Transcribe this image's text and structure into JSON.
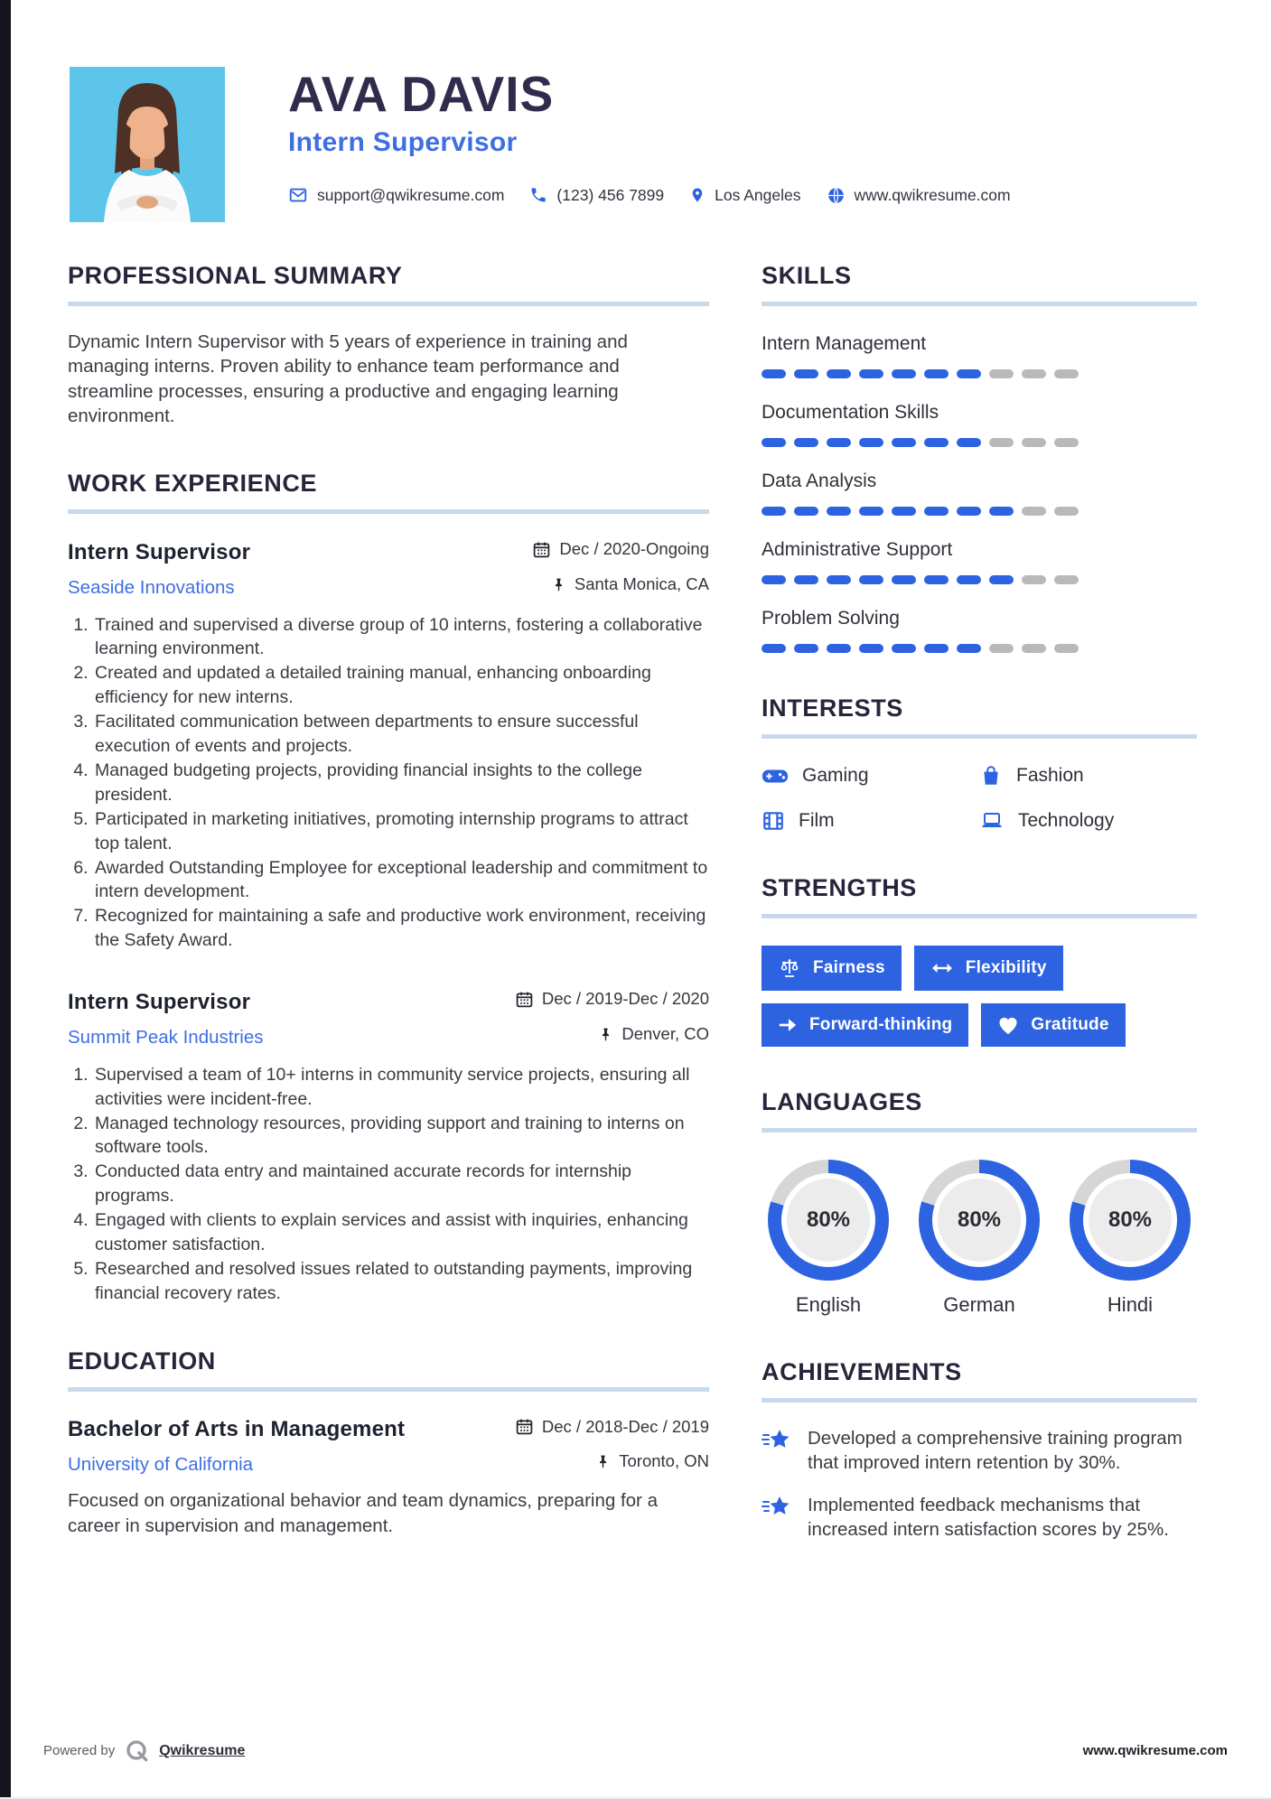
{
  "header": {
    "name": "AVA DAVIS",
    "title": "Intern Supervisor",
    "contacts": [
      {
        "icon": "email-icon",
        "text": "support@qwikresume.com"
      },
      {
        "icon": "phone-icon",
        "text": "(123) 456 7899"
      },
      {
        "icon": "location-icon",
        "text": "Los Angeles"
      },
      {
        "icon": "globe-icon",
        "text": "www.qwikresume.com"
      }
    ]
  },
  "summary": {
    "heading": "PROFESSIONAL SUMMARY",
    "text": "Dynamic Intern Supervisor with 5 years of experience in training and managing interns. Proven ability to enhance team performance and streamline processes, ensuring a productive and engaging learning environment."
  },
  "experience": {
    "heading": "WORK EXPERIENCE",
    "jobs": [
      {
        "title": "Intern Supervisor",
        "company": "Seaside Innovations",
        "dates": "Dec / 2020-Ongoing",
        "location": "Santa Monica, CA",
        "bullets": [
          "Trained and supervised a diverse group of 10 interns, fostering a collaborative learning environment.",
          "Created and updated a detailed training manual, enhancing onboarding efficiency for new interns.",
          "Facilitated communication between departments to ensure successful execution of events and projects.",
          "Managed budgeting projects, providing financial insights to the college president.",
          "Participated in marketing initiatives, promoting internship programs to attract top talent.",
          "Awarded Outstanding Employee for exceptional leadership and commitment to intern development.",
          "Recognized for maintaining a safe and productive work environment, receiving the Safety Award."
        ]
      },
      {
        "title": "Intern Supervisor",
        "company": "Summit Peak Industries",
        "dates": "Dec / 2019-Dec / 2020",
        "location": "Denver, CO",
        "bullets": [
          "Supervised a team of 10+ interns in community service projects, ensuring all activities were incident-free.",
          "Managed technology resources, providing support and training to interns on software tools.",
          "Conducted data entry and maintained accurate records for internship programs.",
          "Engaged with clients to explain services and assist with inquiries, enhancing customer satisfaction.",
          "Researched and resolved issues related to outstanding payments, improving financial recovery rates."
        ]
      }
    ]
  },
  "education": {
    "heading": "EDUCATION",
    "degree": "Bachelor of Arts in Management",
    "school": "University of California",
    "dates": "Dec / 2018-Dec / 2019",
    "location": "Toronto, ON",
    "description": "Focused on organizational behavior and team dynamics, preparing for a career in supervision and management."
  },
  "skills": {
    "heading": "SKILLS",
    "max": 10,
    "items": [
      {
        "label": "Intern Management",
        "level": 7
      },
      {
        "label": "Documentation Skills",
        "level": 7
      },
      {
        "label": "Data Analysis",
        "level": 8
      },
      {
        "label": "Administrative Support",
        "level": 8
      },
      {
        "label": "Problem Solving",
        "level": 7
      }
    ]
  },
  "interests": {
    "heading": "INTERESTS",
    "items": [
      {
        "icon": "gamepad-icon",
        "label": "Gaming"
      },
      {
        "icon": "shopping-bag-icon",
        "label": "Fashion"
      },
      {
        "icon": "film-icon",
        "label": "Film"
      },
      {
        "icon": "laptop-icon",
        "label": "Technology"
      }
    ]
  },
  "strengths": {
    "heading": "STRENGTHS",
    "items": [
      {
        "icon": "scales-icon",
        "label": "Fairness"
      },
      {
        "icon": "double-arrow-icon",
        "label": "Flexibility"
      },
      {
        "icon": "arrow-right-icon",
        "label": "Forward-thinking"
      },
      {
        "icon": "heart-icon",
        "label": "Gratitude"
      }
    ]
  },
  "languages": {
    "heading": "LANGUAGES",
    "items": [
      {
        "label": "English",
        "percent": 80,
        "percent_label": "80%"
      },
      {
        "label": "German",
        "percent": 80,
        "percent_label": "80%"
      },
      {
        "label": "Hindi",
        "percent": 80,
        "percent_label": "80%"
      }
    ]
  },
  "achievements": {
    "heading": "ACHIEVEMENTS",
    "icon": "shooting-star-icon",
    "items": [
      "Developed a comprehensive training program that improved intern retention by 30%.",
      "Implemented feedback mechanisms that increased intern satisfaction scores by 25%."
    ]
  },
  "footer": {
    "powered_by": "Powered by",
    "brand": "Qwikresume",
    "website": "www.qwikresume.com"
  },
  "colors": {
    "accent": "#2d62e0",
    "link_blue": "#3e6fe1",
    "dot_off": "#b9b9bc",
    "ring_gray": "#d6d6d6",
    "heading_dark": "#26253c",
    "name_dark": "#322b4c",
    "rule_blue": "#c9d9ec"
  }
}
